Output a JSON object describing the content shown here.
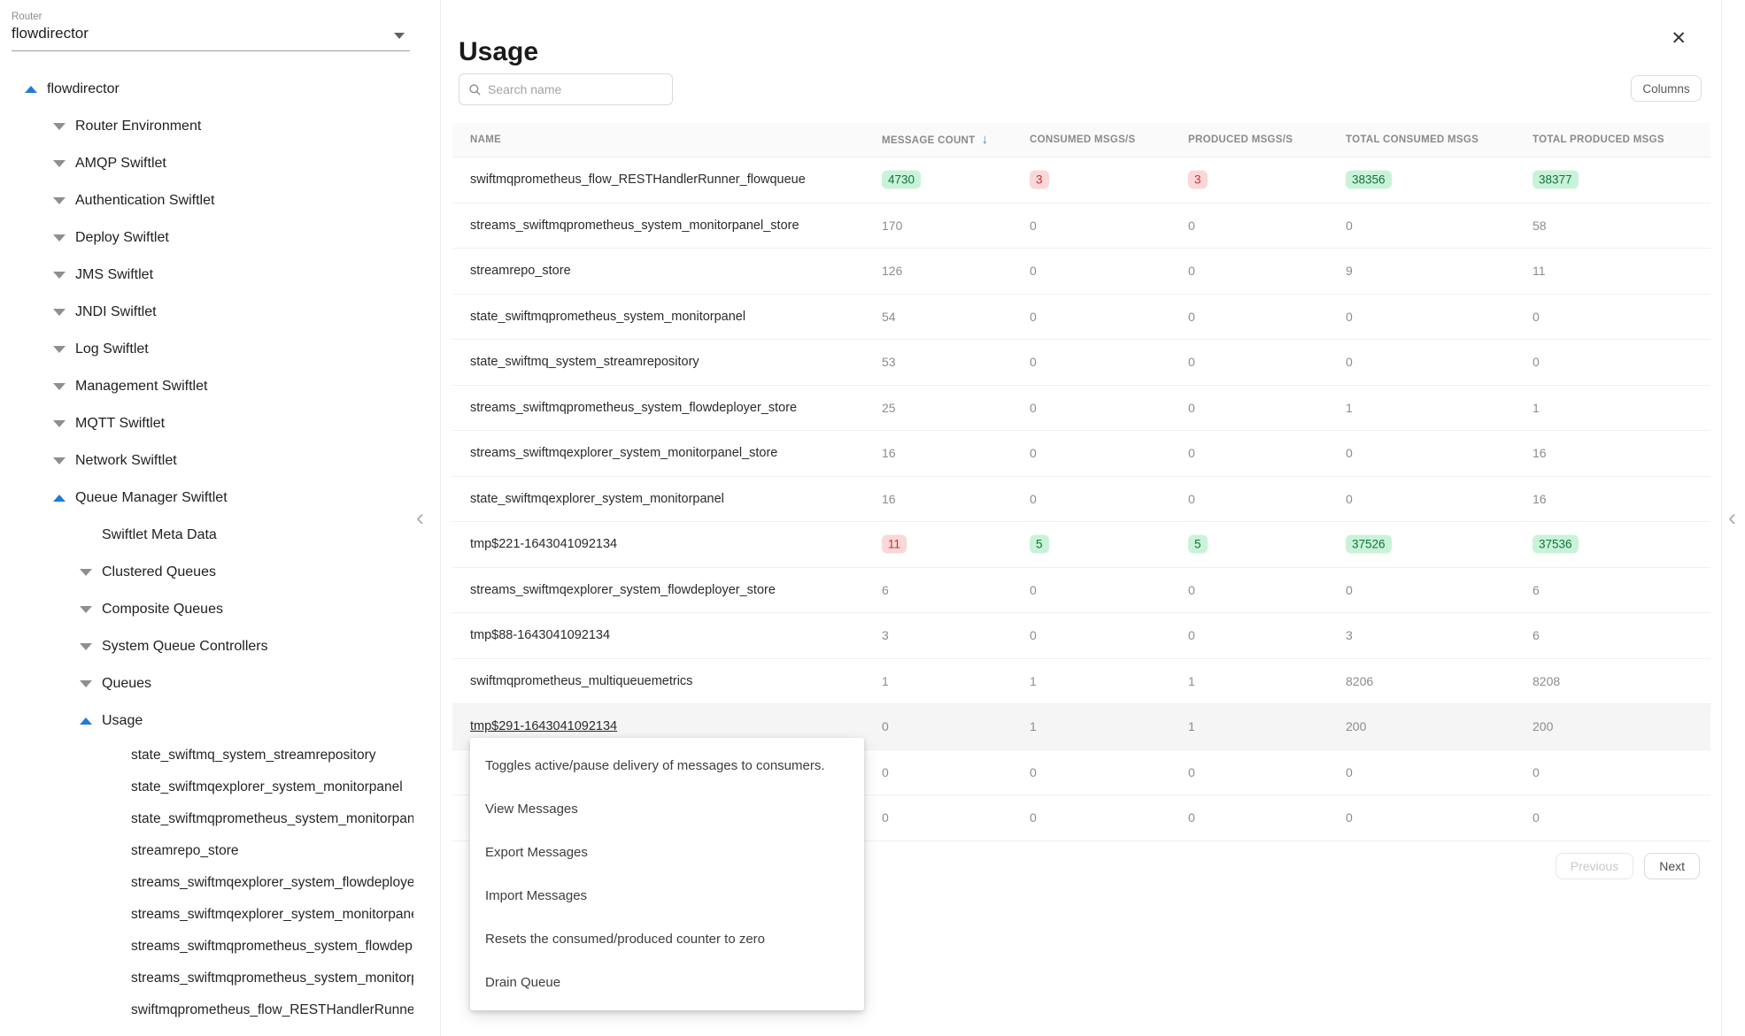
{
  "colors": {
    "accent_blue": "#2279db",
    "sort_arrow_blue": "#3b86e0",
    "badge_green_bg": "#c9f3d8",
    "badge_green_text": "#15713e",
    "badge_red_bg": "#fbd7d7",
    "badge_red_text": "#bd3434"
  },
  "icons": {
    "search": "magnifier",
    "close": "✕",
    "sort_desc": "↓",
    "sidebar_collapse": "‹",
    "panel_collapse": "‹"
  },
  "sidebar": {
    "router_label": "Router",
    "router_value": "flowdirector",
    "tree": [
      {
        "label": "flowdirector",
        "level": 0,
        "arrow": "up"
      },
      {
        "label": "Router Environment",
        "level": 1,
        "arrow": "down"
      },
      {
        "label": "AMQP Swiftlet",
        "level": 1,
        "arrow": "down"
      },
      {
        "label": "Authentication Swiftlet",
        "level": 1,
        "arrow": "down"
      },
      {
        "label": "Deploy Swiftlet",
        "level": 1,
        "arrow": "down"
      },
      {
        "label": "JMS Swiftlet",
        "level": 1,
        "arrow": "down"
      },
      {
        "label": "JNDI Swiftlet",
        "level": 1,
        "arrow": "down"
      },
      {
        "label": "Log Swiftlet",
        "level": 1,
        "arrow": "down"
      },
      {
        "label": "Management Swiftlet",
        "level": 1,
        "arrow": "down"
      },
      {
        "label": "MQTT Swiftlet",
        "level": 1,
        "arrow": "down"
      },
      {
        "label": "Network Swiftlet",
        "level": 1,
        "arrow": "down"
      },
      {
        "label": "Queue Manager Swiftlet",
        "level": 1,
        "arrow": "up"
      },
      {
        "label": "Swiftlet Meta Data",
        "level": 2,
        "arrow": "none"
      },
      {
        "label": "Clustered Queues",
        "level": 2,
        "arrow": "down"
      },
      {
        "label": "Composite Queues",
        "level": 2,
        "arrow": "down"
      },
      {
        "label": "System Queue Controllers",
        "level": 2,
        "arrow": "down"
      },
      {
        "label": "Queues",
        "level": 2,
        "arrow": "down"
      },
      {
        "label": "Usage",
        "level": 2,
        "arrow": "up"
      },
      {
        "label": "state_swiftmq_system_streamrepository",
        "level": 3,
        "arrow": "none"
      },
      {
        "label": "state_swiftmqexplorer_system_monitorpanel",
        "level": 3,
        "arrow": "none"
      },
      {
        "label": "state_swiftmqprometheus_system_monitorpanel",
        "level": 3,
        "arrow": "none"
      },
      {
        "label": "streamrepo_store",
        "level": 3,
        "arrow": "none"
      },
      {
        "label": "streams_swiftmqexplorer_system_flowdeployer_store",
        "level": 3,
        "arrow": "none"
      },
      {
        "label": "streams_swiftmqexplorer_system_monitorpanel_store",
        "level": 3,
        "arrow": "none"
      },
      {
        "label": "streams_swiftmqprometheus_system_flowdeployer_store",
        "level": 3,
        "arrow": "none"
      },
      {
        "label": "streams_swiftmqprometheus_system_monitorpanel_store",
        "level": 3,
        "arrow": "none"
      },
      {
        "label": "swiftmqprometheus_flow_RESTHandlerRunner_flowqueue",
        "level": 3,
        "arrow": "none"
      }
    ]
  },
  "panel": {
    "title": "Usage",
    "close_icon": "✕",
    "search_placeholder": "Search name",
    "columns_button": "Columns"
  },
  "table": {
    "columns": [
      "NAME",
      "MESSAGE COUNT",
      "CONSUMED MSGS/S",
      "PRODUCED MSGS/S",
      "TOTAL CONSUMED MSGS",
      "TOTAL PRODUCED MSGS"
    ],
    "sort_column_index": 1,
    "sort_icon": "↓",
    "rows": [
      {
        "name": "swiftmqprometheus_flow_RESTHandlerRunner_flowqueue",
        "values": [
          "4730",
          "3",
          "3",
          "38356",
          "38377"
        ],
        "styles": [
          "green",
          "red",
          "red",
          "green",
          "green"
        ]
      },
      {
        "name": "streams_swiftmqprometheus_system_monitorpanel_store",
        "values": [
          "170",
          "0",
          "0",
          "0",
          "58"
        ],
        "styles": [
          "plain",
          "plain",
          "plain",
          "plain",
          "plain"
        ]
      },
      {
        "name": "streamrepo_store",
        "values": [
          "126",
          "0",
          "0",
          "9",
          "11"
        ],
        "styles": [
          "plain",
          "plain",
          "plain",
          "plain",
          "plain"
        ]
      },
      {
        "name": "state_swiftmqprometheus_system_monitorpanel",
        "values": [
          "54",
          "0",
          "0",
          "0",
          "0"
        ],
        "styles": [
          "plain",
          "plain",
          "plain",
          "plain",
          "plain"
        ]
      },
      {
        "name": "state_swiftmq_system_streamrepository",
        "values": [
          "53",
          "0",
          "0",
          "0",
          "0"
        ],
        "styles": [
          "plain",
          "plain",
          "plain",
          "plain",
          "plain"
        ]
      },
      {
        "name": "streams_swiftmqprometheus_system_flowdeployer_store",
        "values": [
          "25",
          "0",
          "0",
          "1",
          "1"
        ],
        "styles": [
          "plain",
          "plain",
          "plain",
          "plain",
          "plain"
        ]
      },
      {
        "name": "streams_swiftmqexplorer_system_monitorpanel_store",
        "values": [
          "16",
          "0",
          "0",
          "0",
          "16"
        ],
        "styles": [
          "plain",
          "plain",
          "plain",
          "plain",
          "plain"
        ]
      },
      {
        "name": "state_swiftmqexplorer_system_monitorpanel",
        "values": [
          "16",
          "0",
          "0",
          "0",
          "16"
        ],
        "styles": [
          "plain",
          "plain",
          "plain",
          "plain",
          "plain"
        ]
      },
      {
        "name": "tmp$221-1643041092134",
        "values": [
          "11",
          "5",
          "5",
          "37526",
          "37536"
        ],
        "styles": [
          "red",
          "green",
          "green",
          "green",
          "green"
        ]
      },
      {
        "name": "streams_swiftmqexplorer_system_flowdeployer_store",
        "values": [
          "6",
          "0",
          "0",
          "0",
          "6"
        ],
        "styles": [
          "plain",
          "plain",
          "plain",
          "plain",
          "plain"
        ]
      },
      {
        "name": "tmp$88-1643041092134",
        "values": [
          "3",
          "0",
          "0",
          "3",
          "6"
        ],
        "styles": [
          "plain",
          "plain",
          "plain",
          "plain",
          "plain"
        ]
      },
      {
        "name": "swiftmqprometheus_multiqueuemetrics",
        "values": [
          "1",
          "1",
          "1",
          "8206",
          "8208"
        ],
        "styles": [
          "plain",
          "plain",
          "plain",
          "plain",
          "plain"
        ]
      },
      {
        "name": "tmp$291-1643041092134",
        "values": [
          "0",
          "1",
          "1",
          "200",
          "200"
        ],
        "styles": [
          "plain",
          "plain",
          "plain",
          "plain",
          "plain"
        ],
        "hovered": true,
        "link": true
      },
      {
        "name": "",
        "values": [
          "0",
          "0",
          "0",
          "0",
          "0"
        ],
        "styles": [
          "plain",
          "plain",
          "plain",
          "plain",
          "plain"
        ]
      },
      {
        "name": "",
        "values": [
          "0",
          "0",
          "0",
          "0",
          "0"
        ],
        "styles": [
          "plain",
          "plain",
          "plain",
          "plain",
          "plain"
        ]
      }
    ]
  },
  "context_menu": {
    "items": [
      "Toggles active/pause delivery of messages to consumers.",
      "View Messages",
      "Export Messages",
      "Import Messages",
      "Resets the consumed/produced counter to zero",
      "Drain Queue"
    ]
  },
  "pagination": {
    "previous_label": "Previous",
    "next_label": "Next",
    "previous_disabled": true
  }
}
